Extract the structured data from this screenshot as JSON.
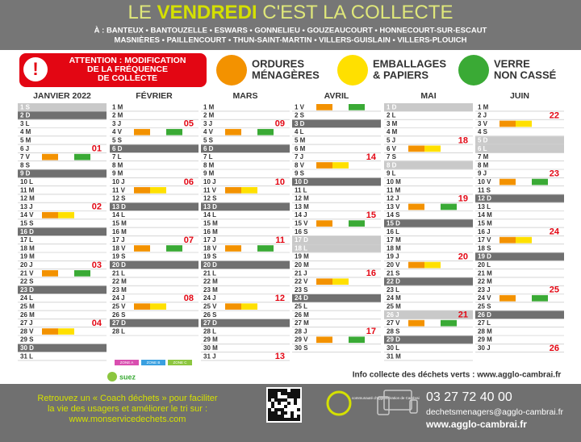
{
  "header": {
    "title_start": "LE ",
    "title_bold": "VENDREDI",
    "title_end": " C'EST LA COLLECTE",
    "communes_line1": "À : BANTEUX • BANTOUZELLE • ESWARS • GONNELIEU • GOUZEAUCOURT • HONNECOURT-SUR-ESCAUT",
    "communes_line2": "MASNIÈRES • PAILLENCOURT • THUN-SAINT-MARTIN • VILLERS-GUISLAIN • VILLERS-PLOUICH"
  },
  "notice": {
    "icon": "!",
    "lines": [
      "ATTENTION : MODIFICATION",
      "DE LA FRÉQUENCE",
      "DE COLLECTE"
    ]
  },
  "legend": [
    {
      "lines": [
        "ORDURES",
        "MÉNAGÈRES"
      ],
      "color": "#f39200"
    },
    {
      "lines": [
        "EMBALLAGES",
        "& PAPIERS"
      ],
      "color": "#ffe000"
    },
    {
      "lines": [
        "VERRE",
        "NON CASSÉ"
      ],
      "color": "#3aaa35"
    }
  ],
  "months": [
    {
      "name": "JANVIER 2022",
      "days": [
        {
          "label": "1 S",
          "shade": "light"
        },
        {
          "label": "2 D",
          "shade": "dark"
        },
        "3 L",
        "4 M",
        "5 M",
        {
          "label": "6 J",
          "week": "01"
        },
        {
          "label": "7 V",
          "pickup": [
            "#f39200",
            "#3aaa35"
          ]
        },
        "8 S",
        {
          "label": "9 D",
          "shade": "dark"
        },
        "10 L",
        "11 M",
        "12 M",
        {
          "label": "13 J",
          "week": "02"
        },
        {
          "label": "14 V",
          "pickup": [
            "#f39200",
            "#ffe000"
          ]
        },
        "15 S",
        {
          "label": "16 D",
          "shade": "dark"
        },
        "17 L",
        "18 M",
        "19 M",
        {
          "label": "20 J",
          "week": "03"
        },
        {
          "label": "21 V",
          "pickup": [
            "#f39200",
            "#3aaa35"
          ]
        },
        "22 S",
        {
          "label": "23 D",
          "shade": "dark"
        },
        "24 L",
        "25 M",
        "26 M",
        {
          "label": "27 J",
          "week": "04"
        },
        {
          "label": "28 V",
          "pickup": [
            "#f39200",
            "#ffe000"
          ]
        },
        "29 S",
        {
          "label": "30 D",
          "shade": "dark"
        },
        "31 L"
      ]
    },
    {
      "name": "FÉVRIER",
      "days": [
        "1 M",
        "2 M",
        {
          "label": "3 J",
          "week": "05"
        },
        {
          "label": "4 V",
          "pickup": [
            "#f39200",
            "#3aaa35"
          ]
        },
        "5 S",
        {
          "label": "6 D",
          "shade": "dark"
        },
        "7 L",
        "8 M",
        "9 M",
        {
          "label": "10 J",
          "week": "06"
        },
        {
          "label": "11 V",
          "pickup": [
            "#f39200",
            "#ffe000"
          ]
        },
        "12 S",
        {
          "label": "13 D",
          "shade": "dark"
        },
        "14 L",
        "15 M",
        "16 M",
        {
          "label": "17 J",
          "week": "07"
        },
        {
          "label": "18 V",
          "pickup": [
            "#f39200",
            "#3aaa35"
          ]
        },
        "19 S",
        {
          "label": "20 D",
          "shade": "dark"
        },
        "21 L",
        "22 M",
        "23 M",
        {
          "label": "24 J",
          "week": "08"
        },
        {
          "label": "25 V",
          "pickup": [
            "#f39200",
            "#ffe000"
          ]
        },
        "26 S",
        {
          "label": "27 D",
          "shade": "dark"
        },
        "28 L"
      ]
    },
    {
      "name": "MARS",
      "days": [
        "1 M",
        "2 M",
        {
          "label": "3 J",
          "week": "09"
        },
        {
          "label": "4 V",
          "pickup": [
            "#f39200",
            "#3aaa35"
          ]
        },
        "5 S",
        {
          "label": "6 D",
          "shade": "dark"
        },
        "7 L",
        "8 M",
        "9 M",
        {
          "label": "10 J",
          "week": "10"
        },
        {
          "label": "11 V",
          "pickup": [
            "#f39200",
            "#ffe000"
          ]
        },
        "12 S",
        {
          "label": "13 D",
          "shade": "dark"
        },
        "14 L",
        "15 M",
        "16 M",
        {
          "label": "17 J",
          "week": "11"
        },
        {
          "label": "18 V",
          "pickup": [
            "#f39200",
            "#3aaa35"
          ]
        },
        "19 S",
        {
          "label": "20 D",
          "shade": "dark"
        },
        "21 L",
        "22 M",
        "23 M",
        {
          "label": "24 J",
          "week": "12"
        },
        {
          "label": "25 V",
          "pickup": [
            "#f39200",
            "#ffe000"
          ]
        },
        "26 S",
        {
          "label": "27 D",
          "shade": "dark"
        },
        "28 L",
        "29 M",
        "30 M",
        {
          "label": "31 J",
          "week": "13"
        }
      ]
    },
    {
      "name": "AVRIL",
      "days": [
        {
          "label": "1 V",
          "pickup": [
            "#f39200",
            "#3aaa35"
          ]
        },
        "2 S",
        {
          "label": "3 D",
          "shade": "dark"
        },
        "4 L",
        "5 M",
        "6 M",
        {
          "label": "7 J",
          "week": "14"
        },
        {
          "label": "8 V",
          "pickup": [
            "#f39200",
            "#ffe000"
          ]
        },
        "9 S",
        {
          "label": "10 D",
          "shade": "dark"
        },
        "11 L",
        "12 M",
        "13 M",
        {
          "label": "14 J",
          "week": "15"
        },
        {
          "label": "15 V",
          "pickup": [
            "#f39200",
            "#3aaa35"
          ]
        },
        "16 S",
        {
          "label": "17 D",
          "shade": "light"
        },
        {
          "label": "18 L",
          "shade": "light"
        },
        "19 M",
        "20 M",
        {
          "label": "21 J",
          "week": "16"
        },
        {
          "label": "22 V",
          "pickup": [
            "#f39200",
            "#ffe000"
          ]
        },
        "23 S",
        {
          "label": "24 D",
          "shade": "dark"
        },
        "25 L",
        "26 M",
        "27 M",
        {
          "label": "28 J",
          "week": "17"
        },
        {
          "label": "29 V",
          "pickup": [
            "#f39200",
            "#3aaa35"
          ]
        },
        "30 S"
      ]
    },
    {
      "name": "MAI",
      "days": [
        {
          "label": "1 D",
          "shade": "light"
        },
        "2 L",
        "3 M",
        "4 M",
        {
          "label": "5 J",
          "week": "18"
        },
        {
          "label": "6 V",
          "pickup": [
            "#f39200",
            "#ffe000"
          ]
        },
        "7 S",
        {
          "label": "8 D",
          "shade": "light"
        },
        "9 L",
        "10 M",
        "11 M",
        {
          "label": "12 J",
          "week": "19"
        },
        {
          "label": "13 V",
          "pickup": [
            "#f39200",
            "#3aaa35"
          ]
        },
        "14 S",
        {
          "label": "15 D",
          "shade": "dark"
        },
        "16 L",
        "17 M",
        "18 M",
        {
          "label": "19 J",
          "week": "20"
        },
        {
          "label": "20 V",
          "pickup": [
            "#f39200",
            "#ffe000"
          ]
        },
        "21 S",
        {
          "label": "22 D",
          "shade": "dark"
        },
        "23 L",
        "24 M",
        "25 M",
        {
          "label": "26 J",
          "shade": "light",
          "week": "21"
        },
        {
          "label": "27 V",
          "pickup": [
            "#f39200",
            "#3aaa35"
          ]
        },
        "28 S",
        {
          "label": "29 D",
          "shade": "dark"
        },
        "30 L",
        "31 M"
      ]
    },
    {
      "name": "JUIN",
      "days": [
        "1 M",
        {
          "label": "2 J",
          "week": "22"
        },
        {
          "label": "3 V",
          "pickup": [
            "#f39200",
            "#ffe000"
          ]
        },
        "4 S",
        {
          "label": "5 D",
          "shade": "light"
        },
        {
          "label": "6 L",
          "shade": "light"
        },
        "7 M",
        "8 M",
        {
          "label": "9 J",
          "week": "23"
        },
        {
          "label": "10 V",
          "pickup": [
            "#f39200",
            "#3aaa35"
          ]
        },
        "11 S",
        {
          "label": "12 D",
          "shade": "dark"
        },
        "13 L",
        "14 M",
        "15 M",
        {
          "label": "16 J",
          "week": "24"
        },
        {
          "label": "17 V",
          "pickup": [
            "#f39200",
            "#ffe000"
          ]
        },
        "18 S",
        {
          "label": "19 D",
          "shade": "dark"
        },
        "20 L",
        "21 M",
        "22 M",
        {
          "label": "23 J",
          "week": "25"
        },
        {
          "label": "24 V",
          "pickup": [
            "#f39200",
            "#3aaa35"
          ]
        },
        "25 S",
        {
          "label": "26 D",
          "shade": "dark"
        },
        "27 L",
        "28 M",
        "29 M",
        {
          "label": "30 J",
          "week": "26"
        }
      ]
    }
  ],
  "zones": [
    {
      "label": "ZONE A",
      "color": "#d94fb0"
    },
    {
      "label": "ZONE B",
      "color": "#3aa0e0"
    },
    {
      "label": "ZONE C",
      "color": "#8cc63f"
    }
  ],
  "green_waste": "Info collecte des déchets verts : www.agglo-cambrai.fr",
  "footer": {
    "sponsor": "suez",
    "coach": [
      "Retrouvez un « Coach déchets » pour faciliter",
      "la vie des usagers et améliorer le tri sur :",
      "www.monservicedechets.com"
    ],
    "agglo_logo": "communauté d'agglomération de Cambrai",
    "phone": "03 27 72 40 00",
    "email": "dechetsmenagers@agglo-cambrai.fr",
    "website": "www.agglo-cambrai.fr"
  }
}
